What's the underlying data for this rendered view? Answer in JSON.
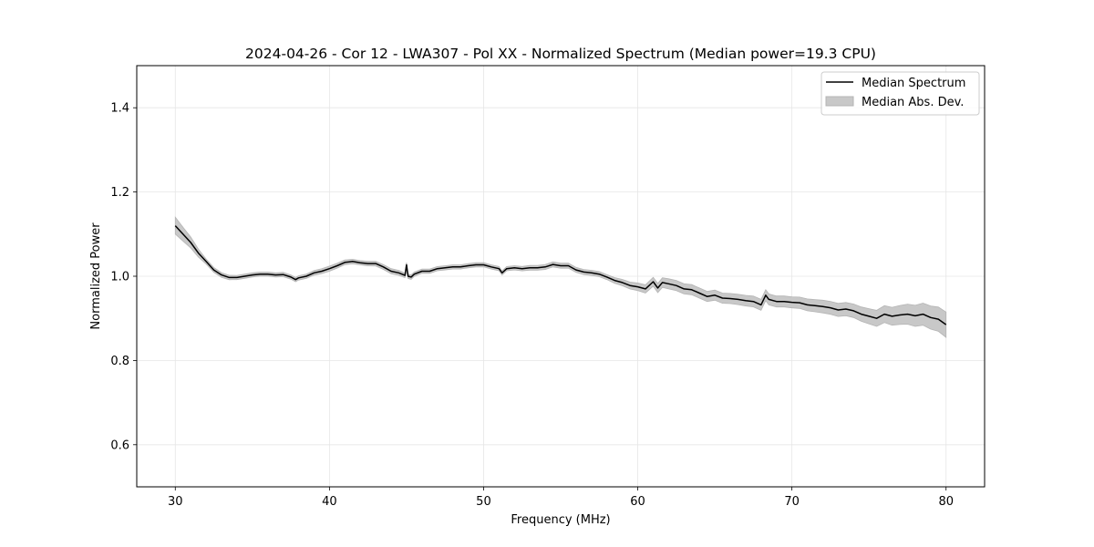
{
  "chart_data": {
    "type": "line",
    "title": "2024-04-26 - Cor 12 - LWA307 - Pol XX - Normalized Spectrum (Median power=19.3 CPU)",
    "xlabel": "Frequency (MHz)",
    "ylabel": "Normalized Power",
    "xlim": [
      27.5,
      82.5
    ],
    "ylim": [
      0.5,
      1.5
    ],
    "xticks": [
      30,
      40,
      50,
      60,
      70,
      80
    ],
    "yticks": [
      0.6,
      0.8,
      1.0,
      1.2,
      1.4
    ],
    "xtick_labels": [
      "30",
      "40",
      "50",
      "60",
      "70",
      "80"
    ],
    "ytick_labels": [
      "0.6",
      "0.8",
      "1.0",
      "1.2",
      "1.4"
    ],
    "grid": true,
    "legend_position": "top-right",
    "series": [
      {
        "name": "Median Spectrum",
        "color": "#000000",
        "x": [
          30.0,
          30.5,
          31.0,
          31.5,
          32.0,
          32.5,
          33.0,
          33.5,
          34.0,
          34.5,
          35.0,
          35.5,
          36.0,
          36.5,
          37.0,
          37.5,
          37.8,
          38.0,
          38.5,
          39.0,
          39.5,
          40.0,
          40.5,
          41.0,
          41.5,
          42.0,
          42.5,
          43.0,
          43.5,
          44.0,
          44.5,
          44.9,
          45.0,
          45.1,
          45.3,
          45.5,
          46.0,
          46.5,
          47.0,
          47.5,
          48.0,
          48.5,
          49.0,
          49.5,
          50.0,
          50.5,
          51.0,
          51.2,
          51.5,
          52.0,
          52.5,
          53.0,
          53.5,
          54.0,
          54.5,
          55.0,
          55.5,
          56.0,
          56.5,
          57.0,
          57.5,
          58.0,
          58.5,
          59.0,
          59.5,
          60.0,
          60.5,
          61.0,
          61.3,
          61.6,
          62.0,
          62.5,
          63.0,
          63.5,
          64.0,
          64.5,
          65.0,
          65.5,
          66.0,
          66.5,
          67.0,
          67.5,
          68.0,
          68.3,
          68.5,
          69.0,
          69.5,
          70.0,
          70.5,
          71.0,
          71.5,
          72.0,
          72.5,
          73.0,
          73.5,
          74.0,
          74.5,
          75.0,
          75.5,
          76.0,
          76.5,
          77.0,
          77.5,
          78.0,
          78.5,
          79.0,
          79.5,
          80.0
        ],
        "y": [
          1.12,
          1.1,
          1.08,
          1.055,
          1.035,
          1.015,
          1.003,
          0.997,
          0.997,
          1.0,
          1.003,
          1.005,
          1.005,
          1.003,
          1.004,
          0.998,
          0.992,
          0.996,
          1.0,
          1.008,
          1.012,
          1.018,
          1.025,
          1.033,
          1.035,
          1.032,
          1.03,
          1.03,
          1.022,
          1.012,
          1.008,
          1.002,
          1.027,
          1.0,
          0.998,
          1.005,
          1.012,
          1.012,
          1.018,
          1.02,
          1.022,
          1.022,
          1.025,
          1.027,
          1.027,
          1.022,
          1.018,
          1.008,
          1.018,
          1.02,
          1.018,
          1.02,
          1.02,
          1.022,
          1.028,
          1.025,
          1.025,
          1.015,
          1.01,
          1.008,
          1.005,
          0.998,
          0.99,
          0.985,
          0.978,
          0.975,
          0.97,
          0.987,
          0.972,
          0.985,
          0.982,
          0.978,
          0.97,
          0.968,
          0.96,
          0.952,
          0.955,
          0.948,
          0.947,
          0.945,
          0.942,
          0.94,
          0.932,
          0.955,
          0.945,
          0.94,
          0.94,
          0.938,
          0.937,
          0.932,
          0.93,
          0.928,
          0.925,
          0.92,
          0.922,
          0.918,
          0.91,
          0.905,
          0.9,
          0.91,
          0.905,
          0.908,
          0.91,
          0.906,
          0.91,
          0.902,
          0.898,
          0.885
        ]
      },
      {
        "name": "Median Abs. Dev.",
        "type": "band",
        "color": "#c8c8c8",
        "x": [
          30.0,
          32.0,
          34.0,
          36.0,
          38.0,
          40.0,
          42.0,
          44.0,
          46.0,
          48.0,
          50.0,
          52.0,
          54.0,
          56.0,
          58.0,
          60.0,
          62.0,
          64.0,
          66.0,
          68.0,
          70.0,
          72.0,
          74.0,
          76.0,
          78.0,
          80.0
        ],
        "half_width": [
          0.02,
          0.006,
          0.005,
          0.005,
          0.005,
          0.006,
          0.005,
          0.006,
          0.005,
          0.005,
          0.005,
          0.005,
          0.006,
          0.006,
          0.006,
          0.009,
          0.012,
          0.012,
          0.012,
          0.013,
          0.013,
          0.015,
          0.016,
          0.02,
          0.025,
          0.03
        ]
      }
    ]
  }
}
